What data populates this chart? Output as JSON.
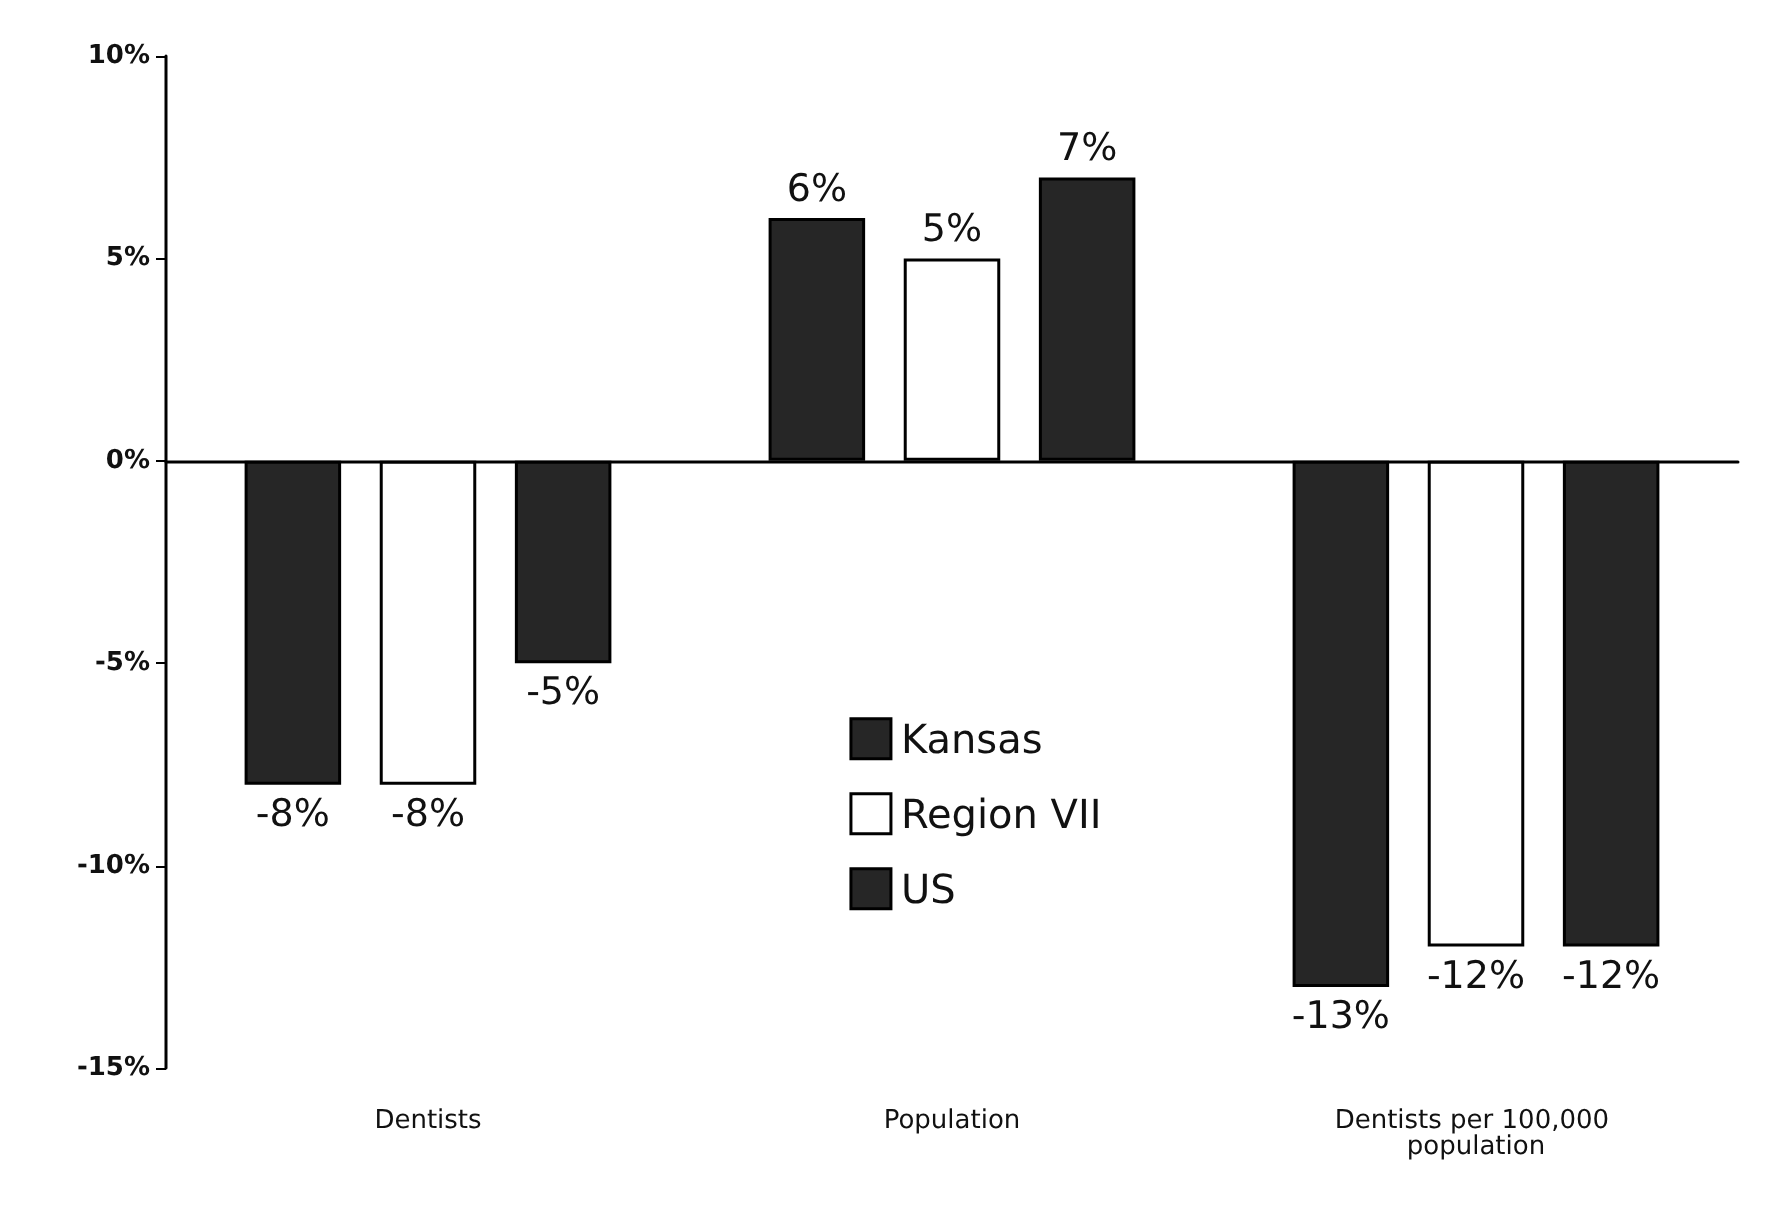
{
  "chart_data": {
    "type": "bar",
    "categories": [
      "Dentists",
      "Population",
      "Dentists per 100,000 population"
    ],
    "series": [
      {
        "name": "Kansas",
        "color": "#262626",
        "values": [
          -8,
          6,
          -13
        ],
        "value_labels": [
          "-8%",
          "6%",
          "-13%"
        ]
      },
      {
        "name": "Region VII",
        "color": "#ffffff",
        "values": [
          -8,
          5,
          -12
        ],
        "value_labels": [
          "-8%",
          "5%",
          "-12%"
        ]
      },
      {
        "name": "US",
        "color": "#262626",
        "values": [
          -5,
          7,
          -12
        ],
        "value_labels": [
          "-5%",
          "7%",
          "-12%"
        ]
      }
    ],
    "ylim": [
      -15,
      10
    ],
    "yticks": [
      {
        "value": -15,
        "label": "-15%"
      },
      {
        "value": -10,
        "label": "-10%"
      },
      {
        "value": -5,
        "label": "-5%"
      },
      {
        "value": 0,
        "label": "0%"
      },
      {
        "value": 5,
        "label": "5%"
      },
      {
        "value": 10,
        "label": "10%"
      }
    ],
    "legend": "center"
  }
}
